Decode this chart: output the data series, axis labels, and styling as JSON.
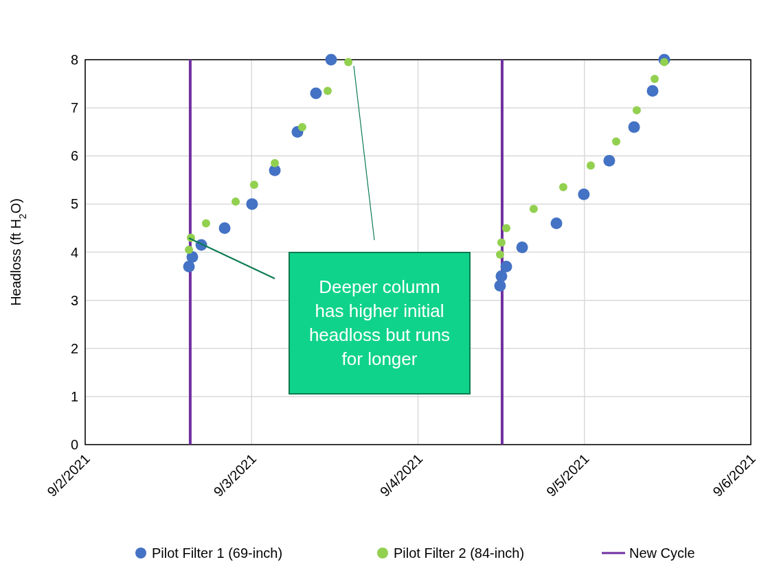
{
  "chart_data": {
    "type": "scatter",
    "ylabel": "Headloss (ft H$_{2}$O)",
    "xlim": [
      "2021-09-02",
      "2021-09-06"
    ],
    "xticks": [
      {
        "value": "2021-09-02",
        "label": "9/2/2021"
      },
      {
        "value": "2021-09-03",
        "label": "9/3/2021"
      },
      {
        "value": "2021-09-04",
        "label": "9/4/2021"
      },
      {
        "value": "2021-09-05",
        "label": "9/5/2021"
      },
      {
        "value": "2021-09-06",
        "label": "9/6/2021"
      }
    ],
    "ylim": [
      0,
      8
    ],
    "yticks": [
      0,
      1,
      2,
      3,
      4,
      5,
      6,
      7,
      8
    ],
    "grid": true,
    "legend": "bottom",
    "marker": "circle",
    "series": [
      {
        "name": "Pilot Filter 1 (69-inch)",
        "color": "#4472c4",
        "x": [
          "2021-09-02T14:58",
          "2021-09-02T15:27",
          "2021-09-02T16:45",
          "2021-09-02T20:07",
          "2021-09-03T00:04",
          "2021-09-03T03:21",
          "2021-09-03T06:37",
          "2021-09-03T09:17",
          "2021-09-03T11:28",
          "2021-09-04T11:50",
          "2021-09-04T12:02",
          "2021-09-04T12:44",
          "2021-09-04T15:01",
          "2021-09-04T19:58",
          "2021-09-04T23:55",
          "2021-09-05T03:35",
          "2021-09-05T07:10",
          "2021-09-05T09:50",
          "2021-09-05T11:31"
        ],
        "values": [
          3.7,
          3.9,
          4.15,
          4.5,
          5.0,
          5.7,
          6.5,
          7.3,
          8.0,
          3.3,
          3.5,
          3.7,
          4.1,
          4.6,
          5.2,
          5.9,
          6.6,
          7.35,
          8.0
        ]
      },
      {
        "name": "Pilot Filter 2 (84-inch)",
        "color": "#92d050",
        "x": [
          "2021-09-02T14:58",
          "2021-09-02T15:15",
          "2021-09-02T17:26",
          "2021-09-02T21:42",
          "2021-09-03T00:22",
          "2021-09-03T03:21",
          "2021-09-03T07:18",
          "2021-09-03T10:58",
          "2021-09-03T13:57",
          "2021-09-04T11:50",
          "2021-09-04T12:02",
          "2021-09-04T12:44",
          "2021-09-04T16:41",
          "2021-09-04T20:57",
          "2021-09-05T00:55",
          "2021-09-05T04:35",
          "2021-09-05T07:33",
          "2021-09-05T10:08",
          "2021-09-05T11:31"
        ],
        "values": [
          4.05,
          4.3,
          4.6,
          5.05,
          5.4,
          5.85,
          6.6,
          7.35,
          7.95,
          3.95,
          4.2,
          4.5,
          4.9,
          5.35,
          5.8,
          6.3,
          6.95,
          7.6,
          7.95
        ]
      }
    ],
    "ref_lines": [
      {
        "axis": "x",
        "value": "2021-09-02T15:09",
        "label": "New Cycle",
        "color": "#7030a0"
      },
      {
        "axis": "x",
        "value": "2021-09-04T12:08",
        "color": "#7030a0"
      }
    ],
    "annotations": [
      "Deeper column has higher initial headloss but runs for longer"
    ]
  }
}
